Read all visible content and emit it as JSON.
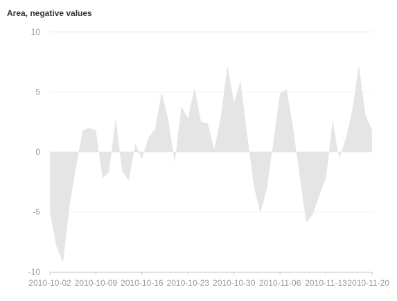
{
  "chart_data": {
    "type": "area",
    "title": "Area, negative values",
    "xlabel": "",
    "ylabel": "",
    "ylim": [
      -10,
      10
    ],
    "yticks": [
      10,
      5,
      0,
      -5,
      -10
    ],
    "xlim": [
      "2010-10-02",
      "2010-11-20"
    ],
    "xtick_labels": [
      "2010-10-02",
      "2010-10-09",
      "2010-10-16",
      "2010-10-23",
      "2010-10-30",
      "2010-11-06",
      "2010-11-13",
      "2010-11-20"
    ],
    "grid": true,
    "legend": "none",
    "colors": {
      "area": "#e5e5e5",
      "grid": "#eeeeee",
      "axis": "#cccccc",
      "tick_text": "#999999",
      "title": "#333333"
    },
    "x": [
      "2010-10-02",
      "2010-10-03",
      "2010-10-04",
      "2010-10-05",
      "2010-10-06",
      "2010-10-07",
      "2010-10-08",
      "2010-10-09",
      "2010-10-10",
      "2010-10-11",
      "2010-10-12",
      "2010-10-13",
      "2010-10-14",
      "2010-10-15",
      "2010-10-16",
      "2010-10-17",
      "2010-10-18",
      "2010-10-19",
      "2010-10-20",
      "2010-10-21",
      "2010-10-22",
      "2010-10-23",
      "2010-10-24",
      "2010-10-25",
      "2010-10-26",
      "2010-10-27",
      "2010-10-28",
      "2010-10-29",
      "2010-10-30",
      "2010-10-31",
      "2010-11-01",
      "2010-11-02",
      "2010-11-03",
      "2010-11-04",
      "2010-11-05",
      "2010-11-06",
      "2010-11-07",
      "2010-11-08",
      "2010-11-09",
      "2010-11-10",
      "2010-11-11",
      "2010-11-12",
      "2010-11-13",
      "2010-11-14",
      "2010-11-15",
      "2010-11-16",
      "2010-11-17",
      "2010-11-18",
      "2010-11-19",
      "2010-11-20"
    ],
    "values": [
      -5.0,
      -7.9,
      -9.2,
      -4.5,
      -1.2,
      1.8,
      2.0,
      1.8,
      -2.2,
      -1.7,
      2.8,
      -1.6,
      -2.4,
      0.7,
      -0.6,
      1.2,
      1.9,
      5.0,
      2.7,
      -0.9,
      3.8,
      2.8,
      5.3,
      2.5,
      2.4,
      0.2,
      2.9,
      7.2,
      4.1,
      5.9,
      1.5,
      -2.8,
      -5.1,
      -3.1,
      0.9,
      4.9,
      5.2,
      2.0,
      -2.1,
      -5.9,
      -5.2,
      -3.6,
      -2.2,
      2.6,
      -0.6,
      1.1,
      3.5,
      7.2,
      3.1,
      1.8
    ]
  }
}
